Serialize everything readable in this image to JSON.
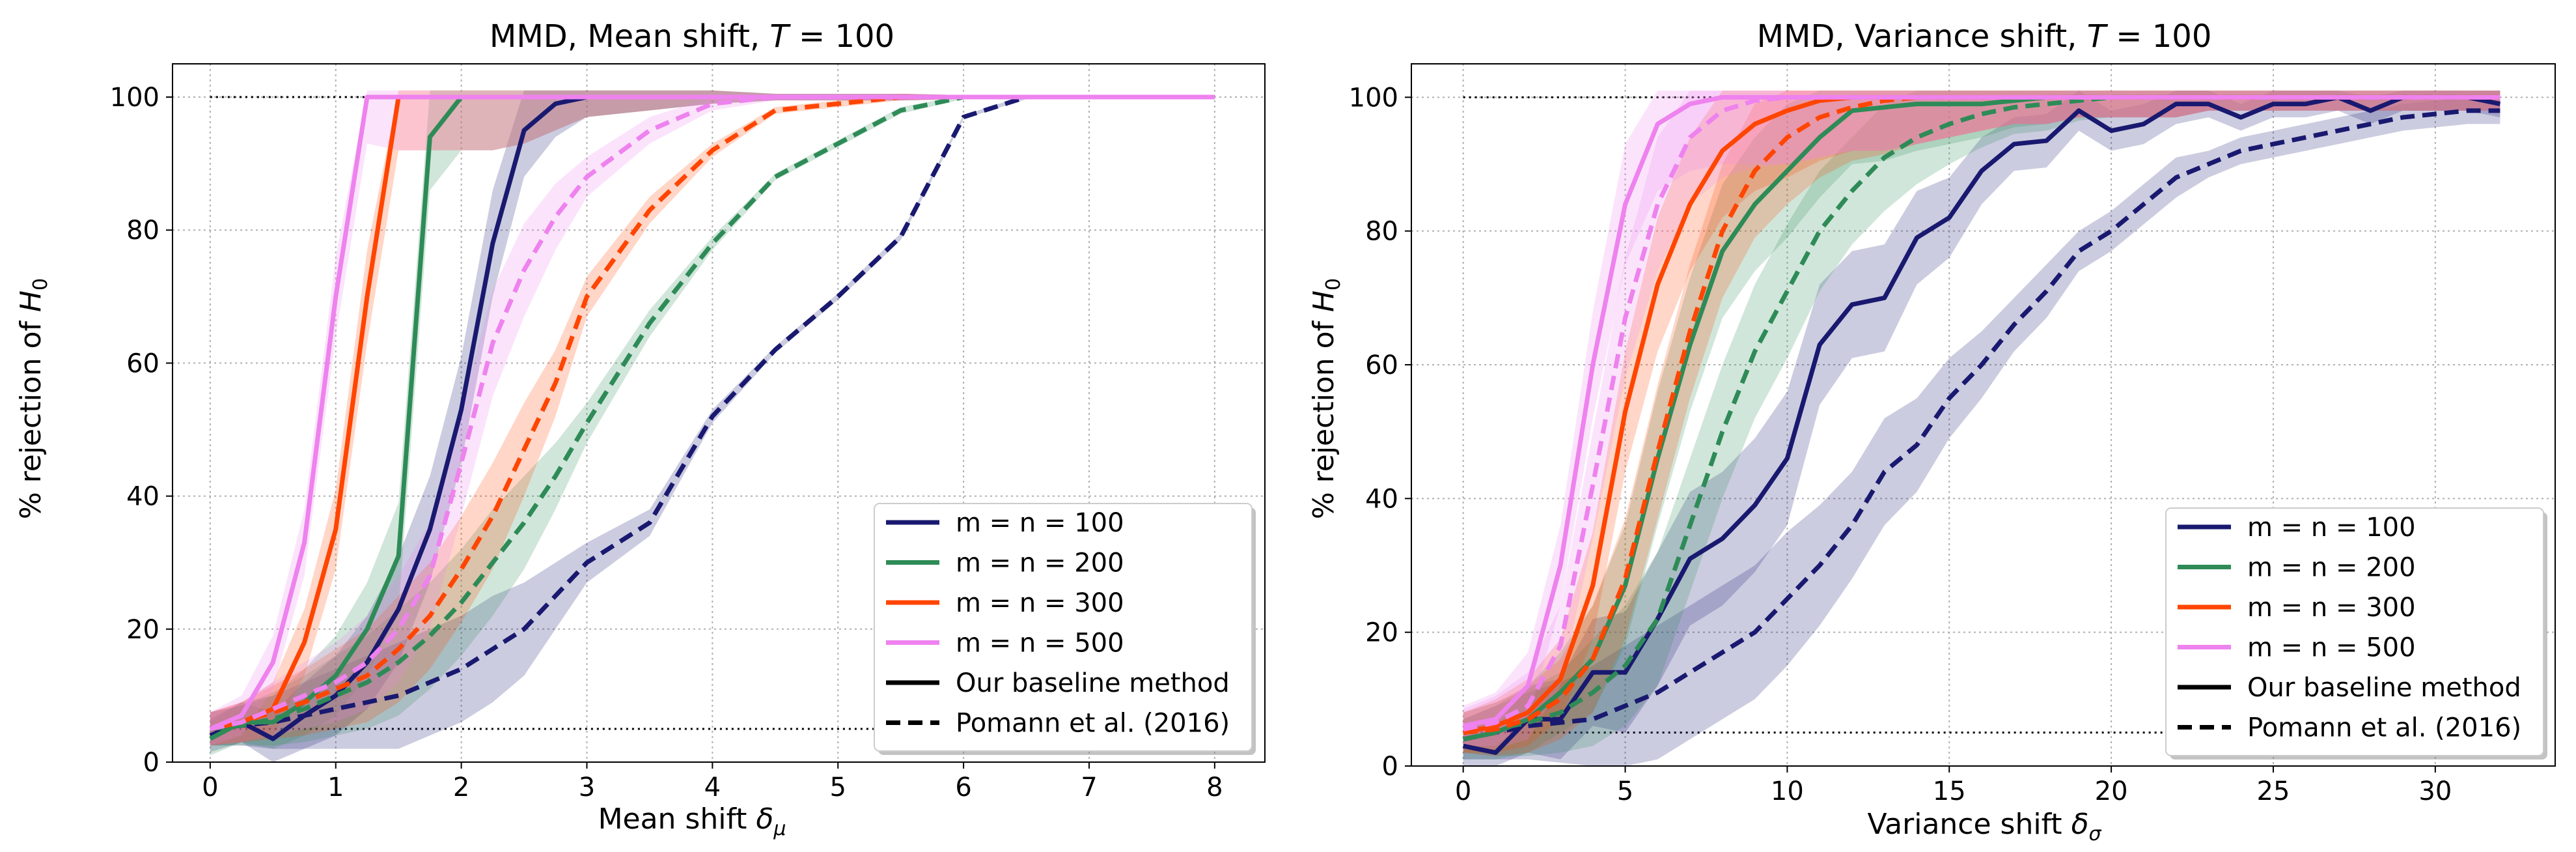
{
  "chart_data": [
    {
      "type": "line",
      "title": "MMD, Mean shift, ",
      "title_T": "T",
      "title_suffix": " = 100",
      "xlabel": "Mean shift ",
      "xlabel_symbol": "δ",
      "xlabel_sub": "μ",
      "ylabel": "% rejection of ",
      "ylabel_symbol": "H",
      "ylabel_sub": "0",
      "xlim": [
        -0.3,
        8.4
      ],
      "ylim": [
        0,
        105
      ],
      "xticks": [
        0,
        1,
        2,
        3,
        4,
        5,
        6,
        7,
        8
      ],
      "yticks": [
        0,
        20,
        40,
        60,
        80,
        100
      ],
      "grid": true,
      "legend_position": "lower-right",
      "reference_lines": [
        100,
        5
      ],
      "x": [
        0,
        0.25,
        0.5,
        0.75,
        1.0,
        1.25,
        1.5,
        1.75,
        2.0,
        2.25,
        2.5,
        2.75,
        3.0,
        3.5,
        4.0,
        4.5,
        5.0,
        5.5,
        6.0,
        6.5,
        7.0,
        7.5,
        8.0
      ],
      "band_width": [
        2.5,
        3,
        4,
        5,
        6,
        7,
        8,
        8,
        8,
        8,
        7,
        5,
        3,
        2,
        1,
        0.5,
        0.5,
        0.5,
        0.3,
        0.3,
        0.3,
        0.3,
        0.3
      ],
      "series": [
        {
          "name": "m = n = 100",
          "method": "baseline",
          "color": "#191970",
          "values": [
            4,
            6,
            3.5,
            7,
            10,
            15,
            23,
            35,
            53,
            78,
            95,
            99,
            100,
            100,
            100,
            100,
            100,
            100,
            100,
            100,
            100,
            100,
            100
          ]
        },
        {
          "name": "m = n = 100",
          "method": "pomann",
          "color": "#191970",
          "values": [
            5,
            5.5,
            6,
            7,
            8,
            9,
            10,
            12,
            14,
            17,
            20,
            25,
            30,
            36,
            52,
            62,
            70,
            79,
            97,
            100,
            100,
            100,
            100
          ]
        },
        {
          "name": "m = n = 200",
          "method": "baseline",
          "color": "#2e8b57",
          "values": [
            3.5,
            6,
            6,
            9,
            13,
            20,
            31,
            94,
            100,
            100,
            100,
            100,
            100,
            100,
            100,
            100,
            100,
            100,
            100,
            100,
            100,
            100,
            100
          ]
        },
        {
          "name": "m = n = 200",
          "method": "pomann",
          "color": "#2e8b57",
          "values": [
            5,
            5.5,
            6.5,
            8,
            10,
            12,
            15,
            19,
            24,
            30,
            36,
            43,
            51,
            66,
            78,
            88,
            93,
            98,
            100,
            100,
            100,
            100,
            100
          ]
        },
        {
          "name": "m = n = 300",
          "method": "baseline",
          "color": "#ff4500",
          "values": [
            5,
            6,
            8,
            18,
            35,
            70,
            100,
            100,
            100,
            100,
            100,
            100,
            100,
            100,
            100,
            100,
            100,
            100,
            100,
            100,
            100,
            100,
            100
          ]
        },
        {
          "name": "m = n = 300",
          "method": "pomann",
          "color": "#ff4500",
          "values": [
            5,
            6,
            7.5,
            9,
            11,
            13,
            17,
            22,
            29,
            37,
            47,
            57,
            70,
            83,
            92,
            98,
            99,
            100,
            100,
            100,
            100,
            100,
            100
          ]
        },
        {
          "name": "m = n = 500",
          "method": "baseline",
          "color": "#ee82ee",
          "values": [
            5,
            7,
            15,
            33,
            70,
            100,
            100,
            100,
            100,
            100,
            100,
            100,
            100,
            100,
            100,
            100,
            100,
            100,
            100,
            100,
            100,
            100,
            100
          ]
        },
        {
          "name": "m = n = 500",
          "method": "pomann",
          "color": "#ee82ee",
          "values": [
            5,
            6,
            8,
            10,
            12,
            15,
            20,
            28,
            45,
            63,
            74,
            82,
            88,
            95,
            99,
            100,
            100,
            100,
            100,
            100,
            100,
            100,
            100
          ]
        }
      ]
    },
    {
      "type": "line",
      "title": "MMD, Variance shift, ",
      "title_T": "T",
      "title_suffix": " = 100",
      "xlabel": "Variance shift ",
      "xlabel_symbol": "δ",
      "xlabel_sub": "σ",
      "ylabel": "% rejection of ",
      "ylabel_symbol": "H",
      "ylabel_sub": "0",
      "xlim": [
        -1.6,
        33.7
      ],
      "ylim": [
        0,
        105
      ],
      "xticks": [
        0,
        5,
        10,
        15,
        20,
        25,
        30
      ],
      "yticks": [
        0,
        20,
        40,
        60,
        80,
        100
      ],
      "grid": true,
      "legend_position": "lower-right",
      "reference_lines": [
        100,
        5
      ],
      "x": [
        0,
        1,
        2,
        3,
        4,
        5,
        6,
        7,
        8,
        9,
        10,
        11,
        12,
        13,
        14,
        15,
        16,
        17,
        18,
        19,
        20,
        21,
        22,
        23,
        24,
        25,
        26,
        27,
        28,
        29,
        30,
        31,
        32
      ],
      "band_width": [
        3,
        4,
        5,
        6,
        8,
        9,
        10,
        10,
        10,
        10,
        10,
        9,
        8,
        8,
        7,
        6,
        5,
        4,
        4,
        3,
        3,
        3,
        3,
        2,
        2,
        2,
        2,
        2,
        2,
        2,
        2,
        2,
        2
      ],
      "series": [
        {
          "name": "m = n = 100",
          "method": "baseline",
          "color": "#191970",
          "values": [
            3,
            2,
            7,
            7,
            14,
            14,
            22,
            31,
            34,
            39,
            46,
            63,
            69,
            70,
            79,
            82,
            89,
            93,
            93.5,
            98,
            95,
            96,
            99,
            99,
            97,
            99,
            99,
            100,
            98,
            100,
            100,
            100,
            99
          ]
        },
        {
          "name": "m = n = 100",
          "method": "pomann",
          "color": "#191970",
          "values": [
            4,
            5,
            6,
            6.5,
            7,
            9,
            11,
            14,
            17,
            20,
            25,
            30,
            36,
            44,
            48,
            55,
            60,
            66,
            71,
            77,
            80,
            84,
            88,
            90,
            92,
            93,
            94,
            95,
            96,
            97,
            97.5,
            98,
            98
          ]
        },
        {
          "name": "m = n = 200",
          "method": "baseline",
          "color": "#2e8b57",
          "values": [
            4,
            5,
            7,
            11,
            16,
            27,
            46,
            63,
            77,
            84,
            89,
            94,
            98,
            98.5,
            99,
            99,
            99,
            99.5,
            100,
            100,
            100,
            100,
            100,
            100,
            100,
            100,
            100,
            100,
            100,
            100,
            100,
            100,
            100
          ]
        },
        {
          "name": "m = n = 200",
          "method": "pomann",
          "color": "#2e8b57",
          "values": [
            5,
            5.5,
            6.5,
            8,
            11,
            15,
            22,
            36,
            50,
            62,
            71,
            80,
            86,
            91,
            94,
            96,
            97.5,
            98.5,
            99,
            99.5,
            100,
            100,
            100,
            100,
            100,
            100,
            100,
            100,
            100,
            100,
            100,
            100,
            100
          ]
        },
        {
          "name": "m = n = 300",
          "method": "baseline",
          "color": "#ff4500",
          "values": [
            5,
            6,
            8,
            13,
            27,
            53,
            72,
            84,
            92,
            96,
            98,
            99.5,
            100,
            100,
            100,
            100,
            100,
            100,
            100,
            100,
            100,
            100,
            100,
            100,
            100,
            100,
            100,
            100,
            100,
            100,
            100,
            100,
            100
          ]
        },
        {
          "name": "m = n = 300",
          "method": "pomann",
          "color": "#ff4500",
          "values": [
            5,
            5.5,
            7,
            10,
            16,
            28,
            47,
            65,
            80,
            89,
            94,
            97,
            98.5,
            99.5,
            100,
            100,
            100,
            100,
            100,
            100,
            100,
            100,
            100,
            100,
            100,
            100,
            100,
            100,
            100,
            100,
            100,
            100,
            100
          ]
        },
        {
          "name": "m = n = 500",
          "method": "baseline",
          "color": "#ee82ee",
          "values": [
            6,
            7,
            12,
            30,
            60,
            84,
            96,
            99,
            100,
            100,
            100,
            100,
            100,
            100,
            100,
            100,
            100,
            100,
            100,
            100,
            100,
            100,
            100,
            100,
            100,
            100,
            100,
            100,
            100,
            100,
            100,
            100,
            100
          ]
        },
        {
          "name": "m = n = 500",
          "method": "pomann",
          "color": "#ee82ee",
          "values": [
            5.5,
            6.5,
            9,
            18,
            42,
            67,
            84,
            94,
            98,
            99.5,
            100,
            100,
            100,
            100,
            100,
            100,
            100,
            100,
            100,
            100,
            100,
            100,
            100,
            100,
            100,
            100,
            100,
            100,
            100,
            100,
            100,
            100,
            100
          ]
        }
      ]
    }
  ],
  "legend": [
    {
      "label": "m = n = 100",
      "color": "#191970",
      "style": "solid"
    },
    {
      "label": "m = n = 200",
      "color": "#2e8b57",
      "style": "solid"
    },
    {
      "label": "m = n = 300",
      "color": "#ff4500",
      "style": "solid"
    },
    {
      "label": "m = n = 500",
      "color": "#ee82ee",
      "style": "solid"
    },
    {
      "label": "Our baseline method",
      "color": "#000000",
      "style": "solid"
    },
    {
      "label": "Pomann et al. (2016)",
      "color": "#000000",
      "style": "dashed"
    }
  ]
}
